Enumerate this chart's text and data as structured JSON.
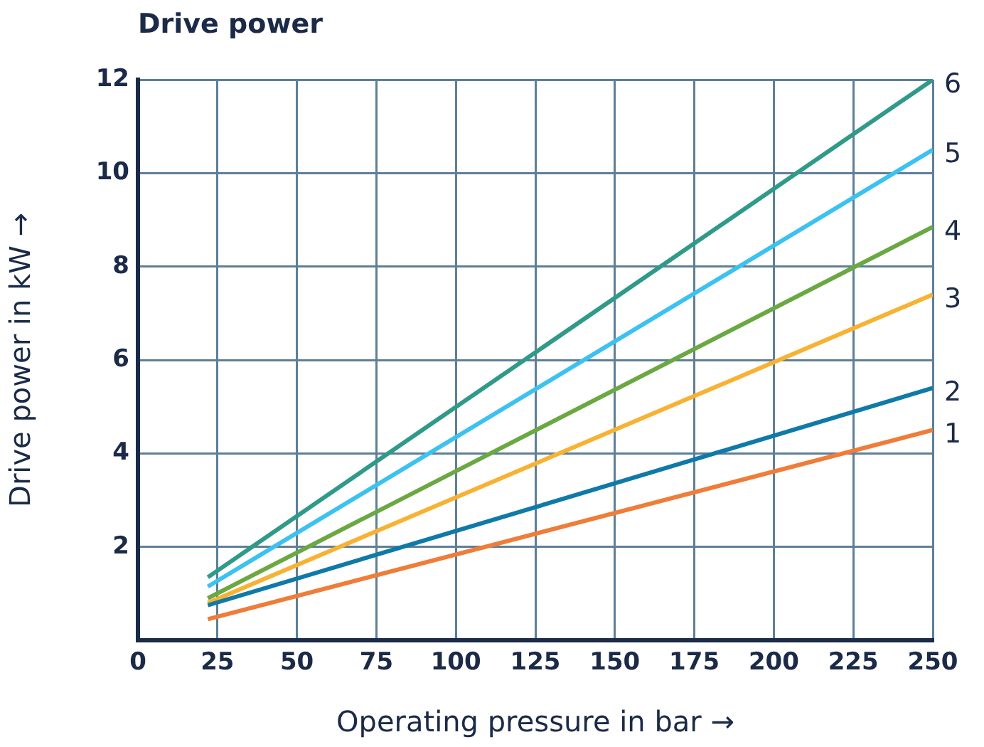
{
  "chart_data": {
    "type": "line",
    "title": "Drive power",
    "xlabel": "Operating pressure in bar →",
    "ylabel": "Drive power in kW →",
    "x": [
      22,
      250
    ],
    "series": [
      {
        "name": "1",
        "color": "#ef7d3a",
        "values": [
          0.45,
          4.5
        ]
      },
      {
        "name": "2",
        "color": "#0f7aa8",
        "values": [
          0.75,
          5.4
        ]
      },
      {
        "name": "3",
        "color": "#f8b233",
        "values": [
          0.8,
          7.4
        ]
      },
      {
        "name": "4",
        "color": "#6aa842",
        "values": [
          0.9,
          8.85
        ]
      },
      {
        "name": "5",
        "color": "#3cc2f0",
        "values": [
          1.15,
          10.5
        ]
      },
      {
        "name": "6",
        "color": "#2f9a8a",
        "values": [
          1.35,
          12
        ]
      }
    ],
    "xlim": [
      0,
      250
    ],
    "xticks": [
      0,
      25,
      50,
      75,
      100,
      125,
      150,
      175,
      200,
      225,
      250
    ],
    "ylim": [
      0,
      12
    ],
    "yticks": [
      2,
      4,
      6,
      8,
      10,
      12
    ],
    "grid": true,
    "legend": false,
    "marker": "none",
    "line_style": "solid"
  }
}
